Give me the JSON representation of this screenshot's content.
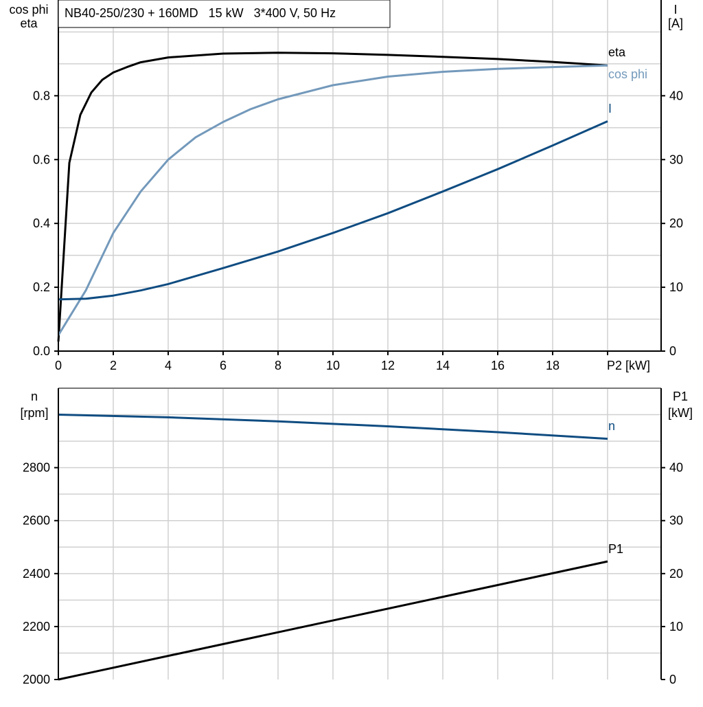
{
  "chart_data": [
    {
      "type": "line",
      "title": "NB40-250/230 + 160MD   15 kW   3*400 V, 50 Hz",
      "xlabel": "P2 [kW]",
      "ylabel_left": [
        "cos phi",
        "eta"
      ],
      "ylabel_right": [
        "I",
        "[A]"
      ],
      "xlim": [
        0,
        22
      ],
      "ylim_left": [
        0,
        1.1
      ],
      "ylim_right": [
        0,
        55
      ],
      "x_ticks": [
        "0",
        "2",
        "4",
        "6",
        "8",
        "10",
        "12",
        "14",
        "16",
        "18"
      ],
      "y_ticks_left": [
        "0.0",
        "0.2",
        "0.4",
        "0.6",
        "0.8"
      ],
      "y_ticks_right": [
        "0",
        "10",
        "20",
        "30",
        "40"
      ],
      "grid": true,
      "series": [
        {
          "name": "eta",
          "axis": "left",
          "color": "#000000",
          "x": [
            0,
            0.4,
            0.8,
            1.2,
            1.6,
            2,
            2.5,
            3,
            4,
            6,
            8,
            10,
            12,
            14,
            16,
            18,
            20
          ],
          "y": [
            0.03,
            0.59,
            0.74,
            0.81,
            0.85,
            0.873,
            0.89,
            0.905,
            0.92,
            0.932,
            0.935,
            0.933,
            0.928,
            0.922,
            0.915,
            0.906,
            0.895
          ]
        },
        {
          "name": "cos phi",
          "axis": "left",
          "color": "#7399bb",
          "x": [
            0,
            1,
            2,
            3,
            4,
            5,
            6,
            7,
            8,
            10,
            12,
            14,
            16,
            18,
            20
          ],
          "y": [
            0.05,
            0.19,
            0.37,
            0.5,
            0.6,
            0.67,
            0.718,
            0.758,
            0.789,
            0.833,
            0.86,
            0.875,
            0.884,
            0.89,
            0.895
          ]
        },
        {
          "name": "I",
          "axis": "right",
          "color": "#0f4c81",
          "x": [
            0,
            1,
            2,
            3,
            4,
            6,
            8,
            10,
            12,
            14,
            16,
            18,
            20
          ],
          "y": [
            8.1,
            8.2,
            8.7,
            9.5,
            10.5,
            13,
            15.6,
            18.5,
            21.6,
            25,
            28.5,
            32.2,
            36
          ]
        }
      ]
    },
    {
      "type": "line",
      "xlim": [
        0,
        22
      ],
      "ylabel_left": [
        "n",
        "[rpm]"
      ],
      "ylabel_right": [
        "P1",
        "[kW]"
      ],
      "ylim_left": [
        2000,
        3100
      ],
      "ylim_right": [
        0,
        55
      ],
      "y_ticks_left": [
        "2000",
        "2200",
        "2400",
        "2600",
        "2800"
      ],
      "y_ticks_right": [
        "0",
        "10",
        "20",
        "30",
        "40"
      ],
      "grid": true,
      "series": [
        {
          "name": "n",
          "axis": "left",
          "color": "#0f4c81",
          "x": [
            0,
            4,
            8,
            12,
            16,
            20
          ],
          "y": [
            3000,
            2990,
            2975,
            2956,
            2934,
            2909
          ]
        },
        {
          "name": "P1",
          "axis": "right",
          "color": "#000000",
          "x": [
            0,
            20
          ],
          "y": [
            0,
            22.3
          ]
        }
      ]
    }
  ]
}
